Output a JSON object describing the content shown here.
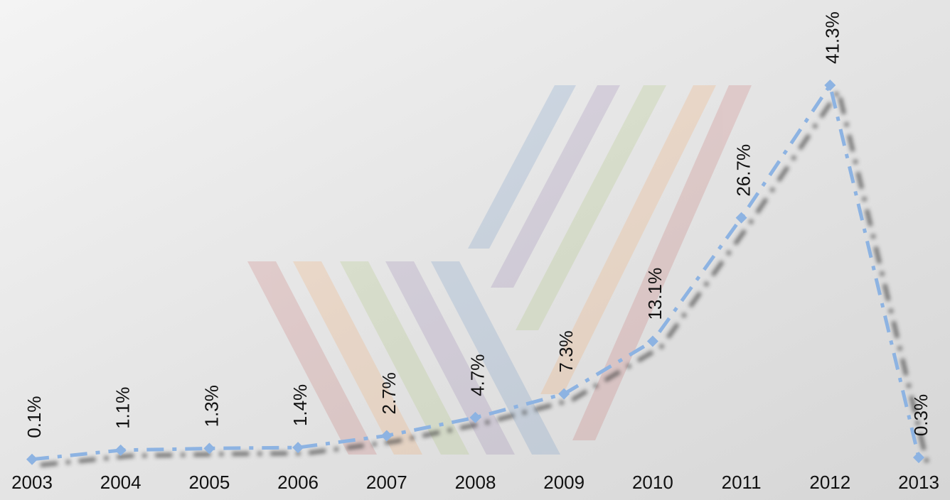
{
  "chart_data": {
    "type": "line",
    "categories": [
      "2003",
      "2004",
      "2005",
      "2006",
      "2007",
      "2008",
      "2009",
      "2010",
      "2011",
      "2012",
      "2013"
    ],
    "values": [
      0.1,
      1.1,
      1.3,
      1.4,
      2.7,
      4.7,
      7.3,
      13.1,
      26.7,
      41.3,
      0.3
    ],
    "value_labels": [
      "0.1%",
      "1.1%",
      "1.3%",
      "1.4%",
      "2.7%",
      "4.7%",
      "7.3%",
      "13.1%",
      "26.7%",
      "41.3%",
      "0.3%"
    ],
    "color": "#8db3e2"
  }
}
